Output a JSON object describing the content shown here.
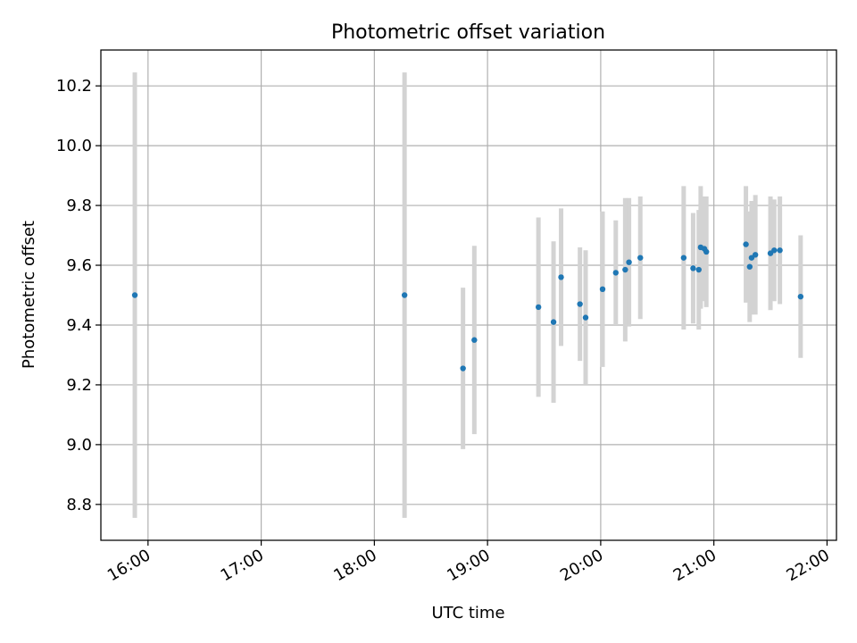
{
  "chart_data": {
    "type": "scatter",
    "title": "Photometric offset variation",
    "xlabel": "UTC time",
    "ylabel": "Photometric offset",
    "x_ticks": [
      "16:00",
      "17:00",
      "18:00",
      "19:00",
      "20:00",
      "21:00",
      "22:00"
    ],
    "y_ticks": [
      "8.8",
      "9.0",
      "9.2",
      "9.4",
      "9.6",
      "9.8",
      "10.0",
      "10.2"
    ],
    "xlim": [
      "15:35",
      "22:05"
    ],
    "ylim": [
      8.68,
      10.32
    ],
    "grid": true,
    "point_color": "#1f77b4",
    "errorbar_color": "#d3d3d3",
    "points": [
      {
        "x": "15:53",
        "y": 9.5,
        "err": 0.745
      },
      {
        "x": "18:16",
        "y": 9.5,
        "err": 0.745
      },
      {
        "x": "18:47",
        "y": 9.255,
        "err": 0.27
      },
      {
        "x": "18:53",
        "y": 9.35,
        "err": 0.315
      },
      {
        "x": "19:27",
        "y": 9.46,
        "err": 0.3
      },
      {
        "x": "19:35",
        "y": 9.41,
        "err": 0.27
      },
      {
        "x": "19:39",
        "y": 9.56,
        "err": 0.23
      },
      {
        "x": "19:49",
        "y": 9.47,
        "err": 0.19
      },
      {
        "x": "19:52",
        "y": 9.425,
        "err": 0.225
      },
      {
        "x": "20:01",
        "y": 9.52,
        "err": 0.26
      },
      {
        "x": "20:08",
        "y": 9.575,
        "err": 0.175
      },
      {
        "x": "20:13",
        "y": 9.585,
        "err": 0.24
      },
      {
        "x": "20:15",
        "y": 9.61,
        "err": 0.215
      },
      {
        "x": "20:21",
        "y": 9.625,
        "err": 0.205
      },
      {
        "x": "20:44",
        "y": 9.625,
        "err": 0.24
      },
      {
        "x": "20:49",
        "y": 9.59,
        "err": 0.185
      },
      {
        "x": "20:52",
        "y": 9.585,
        "err": 0.2
      },
      {
        "x": "20:53",
        "y": 9.66,
        "err": 0.205
      },
      {
        "x": "20:55",
        "y": 9.655,
        "err": 0.175
      },
      {
        "x": "20:56",
        "y": 9.645,
        "err": 0.185
      },
      {
        "x": "21:17",
        "y": 9.67,
        "err": 0.195
      },
      {
        "x": "21:19",
        "y": 9.595,
        "err": 0.185
      },
      {
        "x": "21:20",
        "y": 9.625,
        "err": 0.19
      },
      {
        "x": "21:22",
        "y": 9.635,
        "err": 0.2
      },
      {
        "x": "21:30",
        "y": 9.64,
        "err": 0.19
      },
      {
        "x": "21:32",
        "y": 9.65,
        "err": 0.17
      },
      {
        "x": "21:35",
        "y": 9.65,
        "err": 0.18
      },
      {
        "x": "21:46",
        "y": 9.495,
        "err": 0.205
      }
    ]
  }
}
